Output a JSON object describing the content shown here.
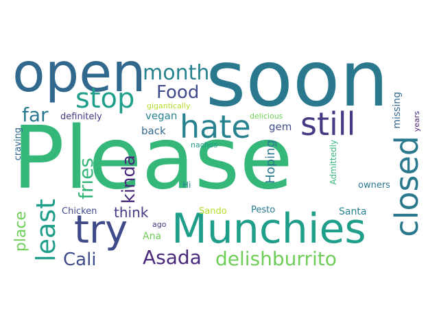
{
  "colors": {
    "background": "#ffffff",
    "palette": [
      "#35b779",
      "#2a788e",
      "#31688e",
      "#1f9e89",
      "#443983",
      "#482878",
      "#6ece58",
      "#b5de2b",
      "#3e4a89",
      "#26828e"
    ]
  },
  "words": {
    "please": "Please",
    "soon": "soon",
    "open": "open",
    "munchies": "Munchies",
    "still": "still",
    "hate": "hate",
    "try": "try",
    "closed": "closed",
    "stop": "stop",
    "month": "month",
    "food": "Food",
    "least": "least",
    "fries": "fries",
    "kinda": "kinda",
    "far": "far",
    "asada": "Asada",
    "delishburrito": "delishburrito",
    "cali": "Cali",
    "place": "place",
    "think": "think",
    "hoping": "Hoping",
    "missing": "missing",
    "gigantically": "gigantically",
    "delicious": "delicious",
    "definitely": "definitely",
    "vegan": "vegan",
    "back": "back",
    "gem": "gem",
    "craving": "craving",
    "nachos": "nachos",
    "admittedly": "Admittedly",
    "years": "years",
    "hi": "Hi",
    "owners": "owners",
    "chicken": "Chicken",
    "sando": "Sando",
    "pesto": "Pesto",
    "santa": "Santa",
    "ago": "ago",
    "ana": "Ana"
  }
}
